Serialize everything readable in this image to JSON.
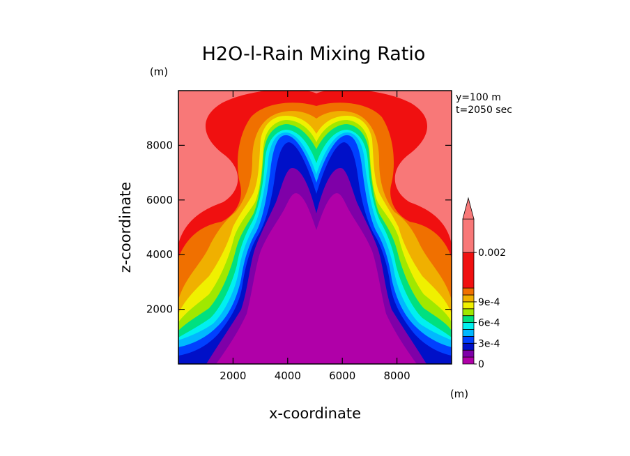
{
  "chart_data": {
    "type": "heatmap",
    "title": "H2O-l-Rain Mixing Ratio",
    "xlabel": "x-coordinate",
    "ylabel": "z-coordinate",
    "x_unit": "(m)",
    "y_unit": "(m)",
    "xlim": [
      0,
      10000
    ],
    "ylim": [
      0,
      10000
    ],
    "xticks": [
      2000,
      4000,
      6000,
      8000
    ],
    "yticks": [
      2000,
      4000,
      6000,
      8000
    ],
    "annotations": [
      "y=100 m",
      "t=2050 sec"
    ],
    "colorbar": {
      "tick_labels": [
        "0",
        "3e-4",
        "6e-4",
        "9e-4",
        "0.002"
      ],
      "tick_values": [
        0,
        0.0003,
        0.0006,
        0.0009,
        0.002
      ],
      "levels": [
        0,
        0.0001,
        0.0002,
        0.0003,
        0.0004,
        0.0005,
        0.0006,
        0.0007,
        0.0008,
        0.0009,
        0.001,
        0.0015,
        0.002
      ],
      "colors": [
        "#b000a8",
        "#7f00a8",
        "#0010c8",
        "#0040ff",
        "#00b8ff",
        "#00f0f0",
        "#00e080",
        "#a0e800",
        "#f0f000",
        "#f0b000",
        "#f07000",
        "#f01010",
        "#f87878"
      ],
      "extend": "max"
    }
  }
}
